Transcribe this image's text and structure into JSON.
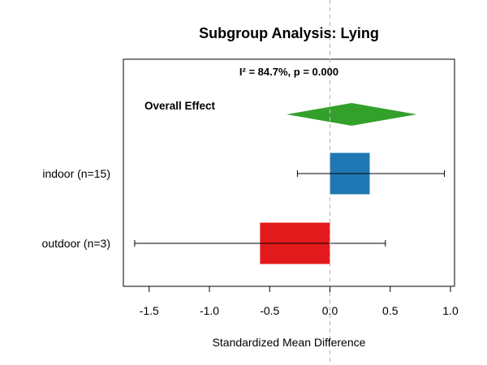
{
  "chart_data": {
    "type": "forest",
    "title": "Subgroup Analysis: Lying",
    "stat_text": "I² = 84.7%, p = 0.000",
    "xlabel": "Standardized Mean Difference",
    "xlim": [
      -1.65,
      1.02
    ],
    "xticks": [
      "-1.5",
      "-1.0",
      "-0.5",
      "0.0",
      "0.5",
      "1.0"
    ],
    "xtick_values": [
      -1.5,
      -1.0,
      -0.5,
      0.0,
      0.5,
      1.0
    ],
    "reference_line": 0.0,
    "overall": {
      "label": "Overall Effect",
      "estimate": 0.18,
      "ci": [
        -0.36,
        0.72
      ],
      "color": "#33a02c"
    },
    "subgroups": [
      {
        "label": "indoor (n=15)",
        "estimate": 0.33,
        "ci": [
          -0.27,
          0.95
        ],
        "color": "#1f78b4"
      },
      {
        "label": "outdoor (n=3)",
        "estimate": -0.58,
        "ci": [
          -1.62,
          0.46
        ],
        "color": "#e31a1c"
      }
    ]
  }
}
